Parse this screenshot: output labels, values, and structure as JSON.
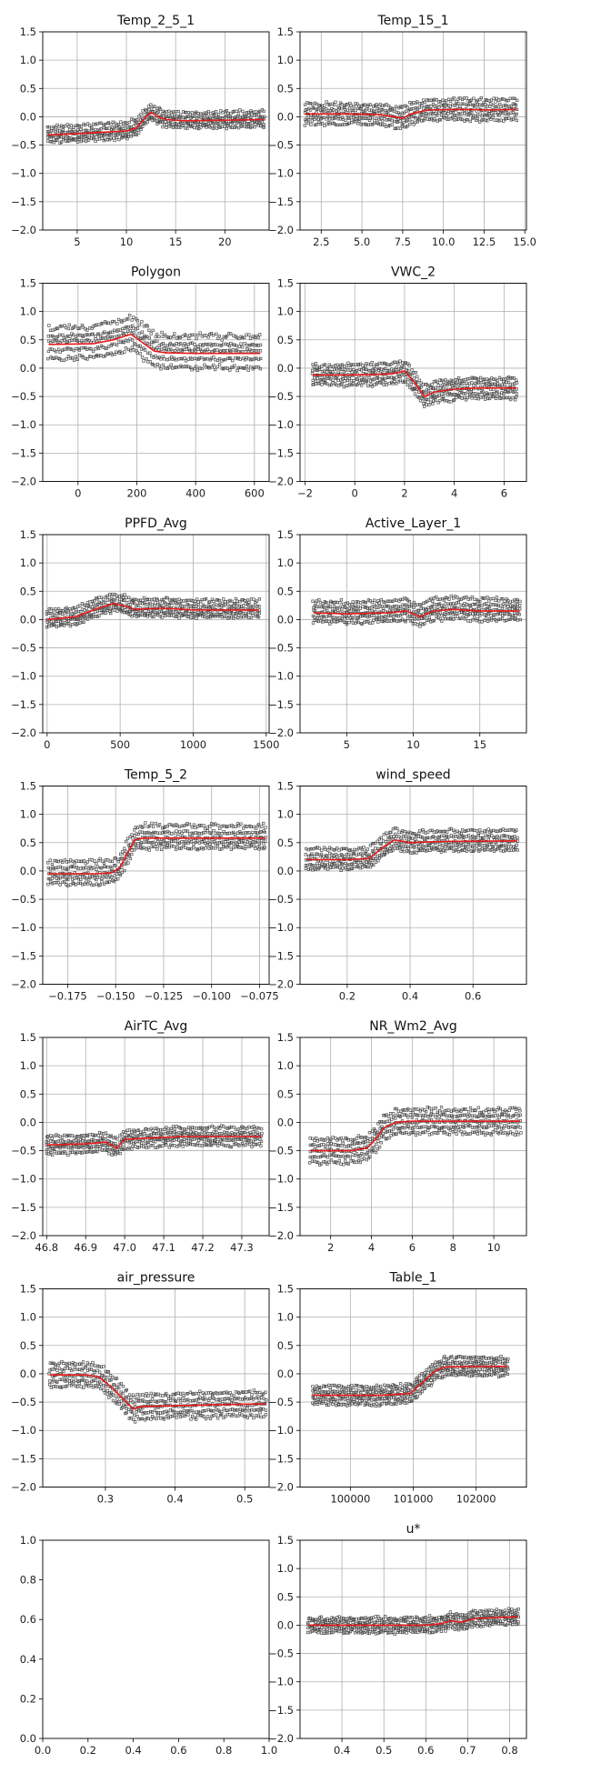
{
  "chart_data": [
    {
      "type": "scatter",
      "title": "Temp_2_5_1",
      "xlim": [
        1.5,
        24.5
      ],
      "ylim": [
        -2.0,
        1.5
      ],
      "xticks": [
        5,
        10,
        15,
        20
      ],
      "xtick_labels": [
        "5",
        "10",
        "15",
        "20"
      ],
      "yticks": [
        1.5,
        1.0,
        0.5,
        0.0,
        -0.5,
        -1.0,
        -1.5,
        -2.0
      ],
      "ytick_labels": [
        "1.5",
        "1.0",
        "0.5",
        "0.0",
        "−0.5",
        "−1.0",
        "−1.5",
        "−2.0"
      ],
      "grid": true,
      "mean_line": {
        "x": [
          2,
          5,
          8,
          10,
          11,
          12,
          12.5,
          13,
          14,
          16,
          20,
          24
        ],
        "y": [
          -0.32,
          -0.3,
          -0.27,
          -0.25,
          -0.2,
          0.0,
          0.08,
          0.02,
          -0.05,
          -0.07,
          -0.06,
          -0.05
        ]
      },
      "ice_offsets": [
        -0.12,
        -0.06,
        0.0,
        0.06,
        0.14
      ],
      "scatter_x_range": [
        2,
        24
      ]
    },
    {
      "type": "scatter",
      "title": "Temp_15_1",
      "xlim": [
        1.2,
        15.1
      ],
      "ylim": [
        -2.0,
        1.5
      ],
      "xticks": [
        2.5,
        5.0,
        7.5,
        10.0,
        12.5,
        15.0
      ],
      "xtick_labels": [
        "2.5",
        "5.0",
        "7.5",
        "10.0",
        "12.5",
        "15.0"
      ],
      "yticks": [
        1.5,
        1.0,
        0.5,
        0.0,
        -0.5,
        -1.0,
        -1.5,
        -2.0
      ],
      "ytick_labels": [
        "1.5",
        "1.0",
        "0.5",
        "0.0",
        "−0.5",
        "−1.0",
        "−1.5",
        "−2.0"
      ],
      "grid": true,
      "mean_line": {
        "x": [
          1.5,
          4,
          6,
          7,
          7.5,
          8,
          9,
          11,
          13,
          14.5
        ],
        "y": [
          0.05,
          0.05,
          0.04,
          0.0,
          -0.03,
          0.05,
          0.12,
          0.13,
          0.12,
          0.13
        ]
      },
      "ice_offsets": [
        -0.17,
        -0.08,
        0.0,
        0.08,
        0.17
      ],
      "scatter_x_range": [
        1.5,
        14.5
      ]
    },
    {
      "type": "scatter",
      "title": "Polygon",
      "xlim": [
        -120,
        650
      ],
      "ylim": [
        -2.0,
        1.5
      ],
      "xticks": [
        0,
        200,
        400,
        600
      ],
      "xtick_labels": [
        "0",
        "200",
        "400",
        "600"
      ],
      "yticks": [
        1.5,
        1.0,
        0.5,
        0.0,
        -0.5,
        -1.0,
        -1.5,
        -2.0
      ],
      "ytick_labels": [
        "1.5",
        "1.0",
        "0.5",
        "0.0",
        "−0.5",
        "−1.0",
        "−1.5",
        "−2.0"
      ],
      "grid": true,
      "mean_line": {
        "x": [
          -100,
          50,
          120,
          180,
          220,
          260,
          300,
          400,
          620
        ],
        "y": [
          0.42,
          0.43,
          0.5,
          0.6,
          0.45,
          0.3,
          0.27,
          0.26,
          0.26
        ]
      },
      "ice_offsets": [
        -0.25,
        -0.1,
        0.05,
        0.15,
        0.3
      ],
      "scatter_x_range": [
        -100,
        620
      ]
    },
    {
      "type": "scatter",
      "title": "VWC_2",
      "xlim": [
        -2.2,
        6.9
      ],
      "ylim": [
        -2.0,
        1.5
      ],
      "xticks": [
        -2,
        0,
        2,
        4,
        6
      ],
      "xtick_labels": [
        "−2",
        "0",
        "2",
        "4",
        "6"
      ],
      "yticks": [
        1.5,
        1.0,
        0.5,
        0.0,
        -0.5,
        -1.0,
        -1.5,
        -2.0
      ],
      "ytick_labels": [
        "1.5",
        "1.0",
        "0.5",
        "0.0",
        "−0.5",
        "−1.0",
        "−1.5",
        "−2.0"
      ],
      "grid": true,
      "mean_line": {
        "x": [
          -1.7,
          0,
          1.5,
          2.0,
          2.4,
          2.8,
          3.2,
          4,
          5,
          6.5
        ],
        "y": [
          -0.12,
          -0.12,
          -0.1,
          -0.05,
          -0.25,
          -0.5,
          -0.42,
          -0.37,
          -0.35,
          -0.35
        ]
      },
      "ice_offsets": [
        -0.17,
        -0.08,
        0.0,
        0.08,
        0.17
      ],
      "scatter_x_range": [
        -1.7,
        6.5
      ]
    },
    {
      "type": "scatter",
      "title": "PPFD_Avg",
      "xlim": [
        -30,
        1520
      ],
      "ylim": [
        -2.0,
        1.5
      ],
      "xticks": [
        0,
        500,
        1000,
        1500
      ],
      "xtick_labels": [
        "0",
        "500",
        "1000",
        "1500"
      ],
      "yticks": [
        1.5,
        1.0,
        0.5,
        0.0,
        -0.5,
        -1.0,
        -1.5,
        -2.0
      ],
      "ytick_labels": [
        "1.5",
        "1.0",
        "0.5",
        "0.0",
        "−0.5",
        "−1.0",
        "−1.5",
        "−2.0"
      ],
      "grid": true,
      "mean_line": {
        "x": [
          0,
          200,
          350,
          450,
          520,
          600,
          800,
          1000,
          1450
        ],
        "y": [
          0.0,
          0.05,
          0.2,
          0.28,
          0.25,
          0.18,
          0.2,
          0.17,
          0.17
        ]
      },
      "ice_offsets": [
        -0.12,
        -0.06,
        0.0,
        0.08,
        0.16
      ],
      "scatter_x_range": [
        0,
        1450
      ]
    },
    {
      "type": "scatter",
      "title": "Active_Layer_1",
      "xlim": [
        1.5,
        18.5
      ],
      "ylim": [
        -2.0,
        1.5
      ],
      "xticks": [
        5,
        10,
        15
      ],
      "xtick_labels": [
        "5",
        "10",
        "15"
      ],
      "yticks": [
        1.5,
        1.0,
        0.5,
        0.0,
        -0.5,
        -1.0,
        -1.5,
        -2.0
      ],
      "ytick_labels": [
        "1.5",
        "1.0",
        "0.5",
        "0.0",
        "−0.5",
        "−1.0",
        "−1.5",
        "−2.0"
      ],
      "grid": true,
      "mean_line": {
        "x": [
          2.5,
          5,
          8,
          9.5,
          10.5,
          11.5,
          13,
          15,
          18
        ],
        "y": [
          0.12,
          0.1,
          0.12,
          0.15,
          0.05,
          0.15,
          0.18,
          0.15,
          0.15
        ]
      },
      "ice_offsets": [
        -0.15,
        -0.06,
        0.02,
        0.1,
        0.2
      ],
      "scatter_x_range": [
        2.5,
        18
      ]
    },
    {
      "type": "scatter",
      "title": "Temp_5_2",
      "xlim": [
        -0.188,
        -0.07
      ],
      "ylim": [
        -2.0,
        1.5
      ],
      "xticks": [
        -0.175,
        -0.15,
        -0.125,
        -0.1,
        -0.075
      ],
      "xtick_labels": [
        "−0.175",
        "−0.150",
        "−0.125",
        "−0.100",
        "−0.075"
      ],
      "yticks": [
        1.5,
        1.0,
        0.5,
        0.0,
        -0.5,
        -1.0,
        -1.5,
        -2.0
      ],
      "ytick_labels": [
        "1.5",
        "1.0",
        "0.5",
        "0.0",
        "−0.5",
        "−1.0",
        "−1.5",
        "−2.0"
      ],
      "grid": true,
      "mean_line": {
        "x": [
          -0.185,
          -0.16,
          -0.152,
          -0.148,
          -0.144,
          -0.14,
          -0.136,
          -0.12,
          -0.072
        ],
        "y": [
          -0.05,
          -0.05,
          -0.03,
          0.05,
          0.3,
          0.55,
          0.58,
          0.58,
          0.58
        ]
      },
      "ice_offsets": [
        -0.17,
        -0.08,
        0.0,
        0.1,
        0.22
      ],
      "scatter_x_range": [
        -0.185,
        -0.072
      ]
    },
    {
      "type": "scatter",
      "title": "wind_speed",
      "xlim": [
        0.05,
        0.77
      ],
      "ylim": [
        -2.0,
        1.5
      ],
      "xticks": [
        0.2,
        0.4,
        0.6
      ],
      "xtick_labels": [
        "0.2",
        "0.4",
        "0.6"
      ],
      "yticks": [
        1.5,
        1.0,
        0.5,
        0.0,
        -0.5,
        -1.0,
        -1.5,
        -2.0
      ],
      "ytick_labels": [
        "1.5",
        "1.0",
        "0.5",
        "0.0",
        "−0.5",
        "−1.0",
        "−1.5",
        "−2.0"
      ],
      "grid": true,
      "mean_line": {
        "x": [
          0.07,
          0.2,
          0.27,
          0.31,
          0.35,
          0.4,
          0.5,
          0.74
        ],
        "y": [
          0.2,
          0.2,
          0.22,
          0.4,
          0.55,
          0.5,
          0.52,
          0.53
        ]
      },
      "ice_offsets": [
        -0.15,
        -0.08,
        0.0,
        0.08,
        0.18
      ],
      "scatter_x_range": [
        0.07,
        0.74
      ]
    },
    {
      "type": "scatter",
      "title": "AirTC_Avg",
      "xlim": [
        46.79,
        47.37
      ],
      "ylim": [
        -2.0,
        1.5
      ],
      "xticks": [
        46.8,
        46.9,
        47.0,
        47.1,
        47.2,
        47.3
      ],
      "xtick_labels": [
        "46.8",
        "46.9",
        "47.0",
        "47.1",
        "47.2",
        "47.3"
      ],
      "yticks": [
        1.5,
        1.0,
        0.5,
        0.0,
        -0.5,
        -1.0,
        -1.5,
        -2.0
      ],
      "ytick_labels": [
        "1.5",
        "1.0",
        "0.5",
        "0.0",
        "−0.5",
        "−1.0",
        "−1.5",
        "−2.0"
      ],
      "grid": true,
      "mean_line": {
        "x": [
          46.8,
          46.9,
          46.95,
          46.98,
          47.0,
          47.05,
          47.15,
          47.35
        ],
        "y": [
          -0.4,
          -0.38,
          -0.35,
          -0.45,
          -0.3,
          -0.28,
          -0.25,
          -0.25
        ]
      },
      "ice_offsets": [
        -0.15,
        -0.06,
        0.0,
        0.06,
        0.15
      ],
      "scatter_x_range": [
        46.8,
        47.35
      ]
    },
    {
      "type": "scatter",
      "title": "NR_Wm2_Avg",
      "xlim": [
        0.5,
        11.6
      ],
      "ylim": [
        -2.0,
        1.5
      ],
      "xticks": [
        2,
        4,
        6,
        8,
        10
      ],
      "xtick_labels": [
        "2",
        "4",
        "6",
        "8",
        "10"
      ],
      "yticks": [
        1.5,
        1.0,
        0.5,
        0.0,
        -0.5,
        -1.0,
        -1.5,
        -2.0
      ],
      "ytick_labels": [
        "1.5",
        "1.0",
        "0.5",
        "0.0",
        "−0.5",
        "−1.0",
        "−1.5",
        "−2.0"
      ],
      "grid": true,
      "mean_line": {
        "x": [
          1,
          3,
          3.8,
          4.2,
          4.6,
          5.2,
          6,
          8,
          11.3
        ],
        "y": [
          -0.5,
          -0.5,
          -0.45,
          -0.3,
          -0.1,
          0.0,
          0.02,
          0.02,
          0.02
        ]
      },
      "ice_offsets": [
        -0.2,
        -0.1,
        0.0,
        0.1,
        0.2
      ],
      "scatter_x_range": [
        1,
        11.3
      ]
    },
    {
      "type": "scatter",
      "title": "air_pressure",
      "xlim": [
        0.21,
        0.535
      ],
      "ylim": [
        -2.0,
        1.5
      ],
      "xticks": [
        0.3,
        0.4,
        0.5
      ],
      "xtick_labels": [
        "0.3",
        "0.4",
        "0.5"
      ],
      "yticks": [
        1.5,
        1.0,
        0.5,
        0.0,
        -0.5,
        -1.0,
        -1.5,
        -2.0
      ],
      "ytick_labels": [
        "1.5",
        "1.0",
        "0.5",
        "0.0",
        "−0.5",
        "−1.0",
        "−1.5",
        "−2.0"
      ],
      "grid": true,
      "mean_line": {
        "x": [
          0.22,
          0.27,
          0.29,
          0.31,
          0.33,
          0.34,
          0.35,
          0.38,
          0.45,
          0.53
        ],
        "y": [
          -0.02,
          -0.02,
          -0.05,
          -0.25,
          -0.5,
          -0.62,
          -0.58,
          -0.57,
          -0.55,
          -0.53
        ]
      },
      "ice_offsets": [
        -0.2,
        -0.1,
        0.0,
        0.1,
        0.2
      ],
      "scatter_x_range": [
        0.22,
        0.53
      ]
    },
    {
      "type": "scatter",
      "title": "Table_1",
      "xlim": [
        99200,
        102800
      ],
      "ylim": [
        -2.0,
        1.5
      ],
      "xticks": [
        100000,
        101000,
        102000
      ],
      "xtick_labels": [
        "100000",
        "101000",
        "102000"
      ],
      "yticks": [
        1.5,
        1.0,
        0.5,
        0.0,
        -0.5,
        -1.0,
        -1.5,
        -2.0
      ],
      "ytick_labels": [
        "1.5",
        "1.0",
        "0.5",
        "0.0",
        "−0.5",
        "−1.0",
        "−1.5",
        "−2.0"
      ],
      "grid": true,
      "mean_line": {
        "x": [
          99400,
          100500,
          100950,
          101150,
          101350,
          101500,
          102000,
          102500
        ],
        "y": [
          -0.38,
          -0.38,
          -0.35,
          -0.15,
          0.05,
          0.12,
          0.13,
          0.13
        ]
      },
      "ice_offsets": [
        -0.15,
        -0.07,
        0.0,
        0.07,
        0.15
      ],
      "scatter_x_range": [
        99400,
        102500
      ]
    },
    {
      "type": "scatter",
      "title": "",
      "empty": true,
      "xlim": [
        0.0,
        1.0
      ],
      "ylim": [
        0.0,
        1.0
      ],
      "xticks": [
        0.0,
        0.2,
        0.4,
        0.6,
        0.8,
        1.0
      ],
      "xtick_labels": [
        "0.0",
        "0.2",
        "0.4",
        "0.6",
        "0.8",
        "1.0"
      ],
      "yticks": [
        1.0,
        0.8,
        0.6,
        0.4,
        0.2,
        0.0
      ],
      "ytick_labels": [
        "1.0",
        "0.8",
        "0.6",
        "0.4",
        "0.2",
        "0.0"
      ],
      "grid": false
    },
    {
      "type": "scatter",
      "title": "u*",
      "xlim": [
        0.3,
        0.84
      ],
      "ylim": [
        -2.0,
        1.5
      ],
      "xticks": [
        0.4,
        0.5,
        0.6,
        0.7,
        0.8
      ],
      "xtick_labels": [
        "0.4",
        "0.5",
        "0.6",
        "0.7",
        "0.8"
      ],
      "yticks": [
        1.5,
        1.0,
        0.5,
        0.0,
        -0.5,
        -1.0,
        -1.5,
        -2.0
      ],
      "ytick_labels": [
        "1.5",
        "1.0",
        "0.5",
        "0.0",
        "−0.5",
        "−1.0",
        "−1.5",
        "−2.0"
      ],
      "grid": true,
      "mean_line": {
        "x": [
          0.32,
          0.5,
          0.6,
          0.64,
          0.66,
          0.68,
          0.72,
          0.82
        ],
        "y": [
          0.0,
          0.0,
          0.0,
          0.03,
          0.08,
          0.05,
          0.12,
          0.15
        ]
      },
      "ice_offsets": [
        -0.12,
        -0.06,
        0.0,
        0.06,
        0.12
      ],
      "scatter_x_range": [
        0.32,
        0.82
      ]
    }
  ],
  "colors": {
    "mean_line": "#e8191a",
    "points": "#4a4a4a",
    "grid": "#b0b0b0",
    "axes": "#000000"
  }
}
